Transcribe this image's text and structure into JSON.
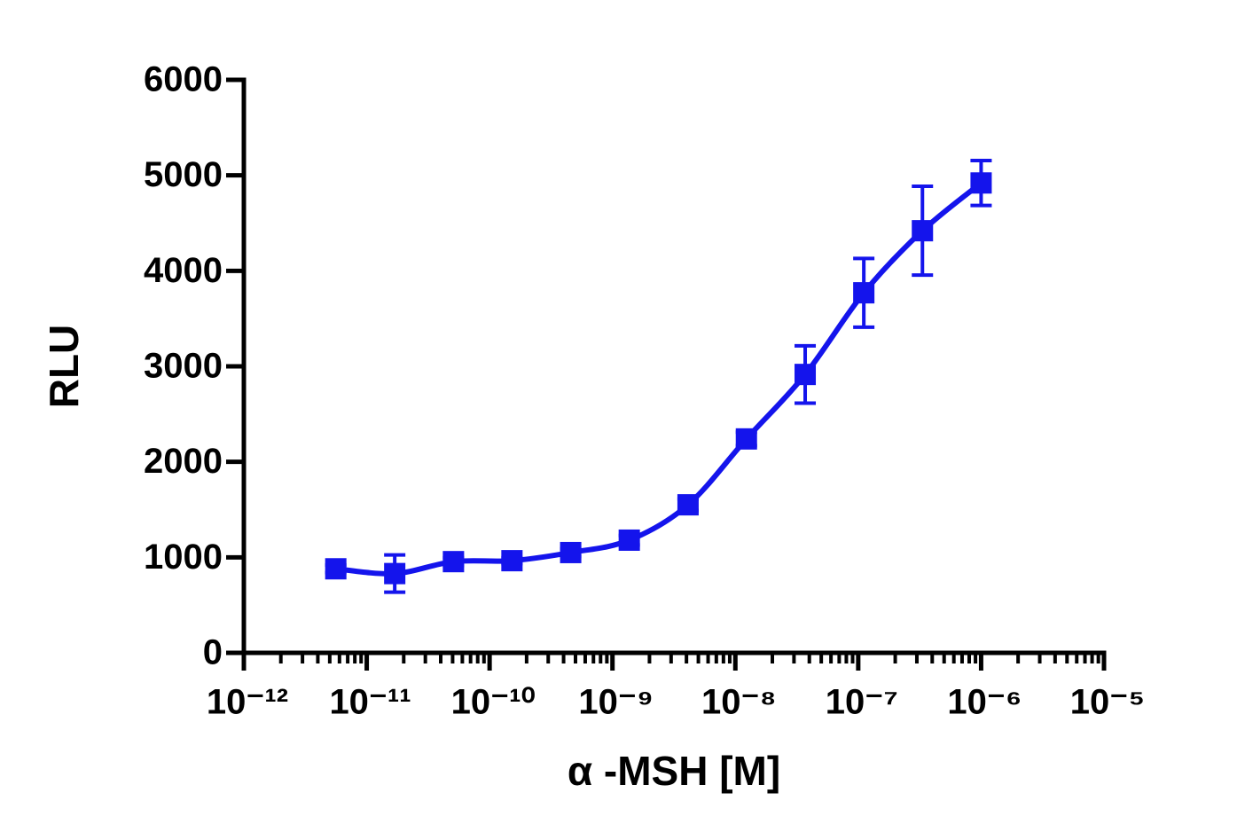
{
  "chart_data": {
    "type": "line",
    "x_label": "α -MSH [M]",
    "y_label": "RLU",
    "xscale": "log",
    "x": [
      5.6e-12,
      1.69e-11,
      5.08e-11,
      1.52e-10,
      4.57e-10,
      1.37e-09,
      4.12e-09,
      1.23e-08,
      3.7e-08,
      1.11e-07,
      3.33e-07,
      1e-06
    ],
    "values": [
      880,
      830,
      955,
      965,
      1050,
      1180,
      1550,
      2240,
      2915,
      3770,
      4420,
      4920
    ],
    "errors": [
      40,
      195,
      40,
      30,
      40,
      50,
      60,
      70,
      300,
      360,
      465,
      235
    ],
    "color": "#1414ec",
    "xlim": [
      1e-12,
      1e-05
    ],
    "xticks": [
      {
        "value": 1e-12,
        "label": "10⁻¹²"
      },
      {
        "value": 1e-11,
        "label": "10⁻¹¹"
      },
      {
        "value": 1e-10,
        "label": "10⁻¹⁰"
      },
      {
        "value": 1e-09,
        "label": "10⁻⁹"
      },
      {
        "value": 1e-08,
        "label": "10⁻⁸"
      },
      {
        "value": 1e-07,
        "label": "10⁻⁷"
      },
      {
        "value": 1e-06,
        "label": "10⁻⁶"
      },
      {
        "value": 1e-05,
        "label": "10⁻⁵"
      }
    ],
    "ylim": [
      0,
      6000
    ],
    "yticks": [
      0,
      1000,
      2000,
      3000,
      4000,
      5000,
      6000
    ]
  }
}
